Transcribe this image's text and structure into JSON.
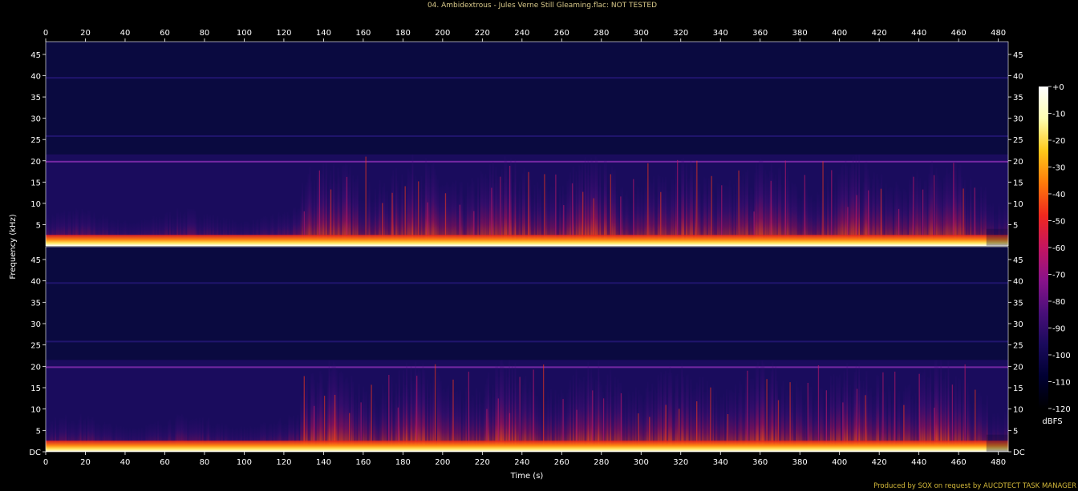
{
  "title": "04. Ambidextrous - Jules Verne Still Gleaming.flac: NOT TESTED",
  "footer": "Produced by SOX on request by AUCDTECT TASK MANAGER",
  "colors": {
    "title": "#d9c98a",
    "footer": "#d4b93a",
    "axis": "#ffffff",
    "background": "#000000",
    "colormap": [
      "#000000",
      "#000033",
      "#1a0a5c",
      "#4a0f7a",
      "#8a128a",
      "#c41560",
      "#f0281e",
      "#ff7a0a",
      "#ffc81a",
      "#ffffb0",
      "#ffffff"
    ]
  },
  "chart_data": {
    "type": "heatmap",
    "title": "04. Ambidextrous - Jules Verne Still Gleaming.flac: NOT TESTED",
    "xlabel": "Time (s)",
    "ylabel": "Frequency (kHz)",
    "colorbar_label": "dBFS",
    "xlim": [
      0,
      485
    ],
    "ylim": [
      0,
      48
    ],
    "x_ticks": [
      0,
      20,
      40,
      60,
      80,
      100,
      120,
      140,
      160,
      180,
      200,
      220,
      240,
      260,
      280,
      300,
      320,
      340,
      360,
      380,
      400,
      420,
      440,
      460,
      480
    ],
    "y_ticks": [
      "DC",
      "5",
      "10",
      "15",
      "20",
      "25",
      "30",
      "35",
      "40",
      "45"
    ],
    "y_tick_values": [
      0,
      5,
      10,
      15,
      20,
      25,
      30,
      35,
      40,
      45
    ],
    "colorbar_ticks": [
      "+0",
      "-10",
      "-20",
      "-30",
      "-40",
      "-50",
      "-60",
      "-70",
      "-80",
      "-90",
      "-100",
      "-110",
      "-120"
    ],
    "colorbar_range": [
      -120,
      0
    ],
    "channels": 2,
    "features": {
      "lowpass_khz": 21.5,
      "line_khz": [
        19.8,
        25.8,
        39.5
      ]
    }
  }
}
